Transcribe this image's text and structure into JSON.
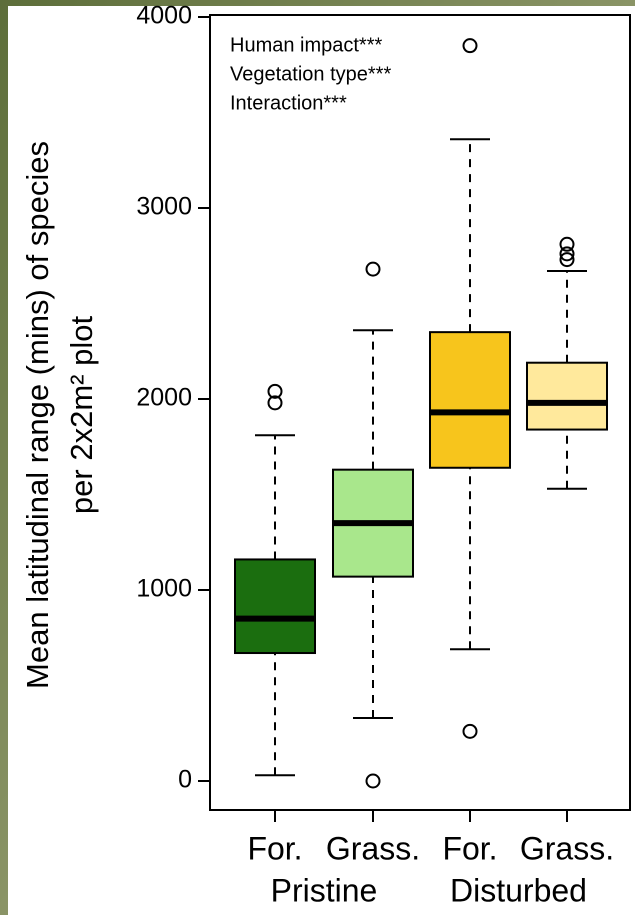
{
  "chart_data": {
    "type": "box",
    "ylabel": [
      "Mean latitudinal range (mins) of species",
      "per 2x2m² plot"
    ],
    "annotations": [
      "Human impact***",
      "Vegetation type***",
      "Interaction***"
    ],
    "categories": [
      "For.",
      "Grass.",
      "For.",
      "Grass."
    ],
    "groups": [
      "Pristine",
      "Disturbed"
    ],
    "colors": [
      "#1b6e0f",
      "#a9e78c",
      "#f7c51c",
      "#ffe99c"
    ],
    "boxes": [
      {
        "whislo": 30,
        "q1": 670,
        "med": 850,
        "q3": 1160,
        "whishi": 1810,
        "fliers": [
          1980,
          2040
        ]
      },
      {
        "whislo": 330,
        "q1": 1070,
        "med": 1350,
        "q3": 1630,
        "whishi": 2360,
        "fliers": [
          0,
          2680
        ]
      },
      {
        "whislo": 690,
        "q1": 1640,
        "med": 1930,
        "q3": 2350,
        "whishi": 3360,
        "fliers": [
          260,
          3850
        ]
      },
      {
        "whislo": 1530,
        "q1": 1840,
        "med": 1980,
        "q3": 2190,
        "whishi": 2670,
        "fliers": [
          2730,
          2760,
          2810
        ]
      }
    ],
    "ylim": [
      0,
      4000
    ],
    "yticks": [
      0,
      1000,
      2000,
      3000,
      4000
    ]
  }
}
